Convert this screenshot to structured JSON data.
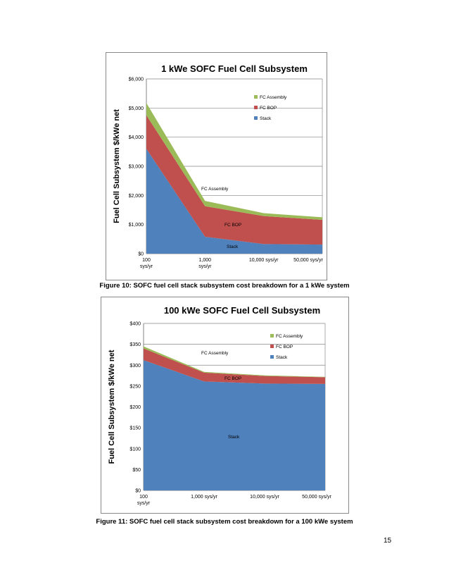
{
  "colors": {
    "stack": "#4f81bd",
    "fc_bop": "#c0504d",
    "fc_assembly": "#9bbb59"
  },
  "chart_data": [
    {
      "type": "area",
      "stacked": true,
      "title": "1 kWe SOFC Fuel Cell Subsystem",
      "ylabel": "Fuel Cell Subsystem $/kWe net",
      "xlabel": "",
      "categories": [
        [
          "100",
          "sys/yr"
        ],
        [
          "1,000",
          "sys/yr"
        ],
        [
          "10,000 sys/yr"
        ],
        [
          "50,000 sys/yr"
        ]
      ],
      "ylim": [
        0,
        6000
      ],
      "yticks": [
        "$0",
        "$1,000",
        "$2,000",
        "$3,000",
        "$4,000",
        "$5,000",
        "$6,000"
      ],
      "series": [
        {
          "name": "Stack",
          "values": [
            3600,
            580,
            330,
            310
          ]
        },
        {
          "name": "FC BOP",
          "values": [
            1150,
            1050,
            960,
            850
          ]
        },
        {
          "name": "FC Assembly",
          "values": [
            420,
            180,
            100,
            90
          ]
        }
      ],
      "legend_position": "right",
      "annotations": [
        "FC Assembly",
        "FC BOP",
        "Stack"
      ],
      "caption": "Figure 10: SOFC fuel cell stack subsystem cost breakdown for a 1 kWe system"
    },
    {
      "type": "area",
      "stacked": true,
      "title": "100 kWe SOFC Fuel Cell Subsystem",
      "ylabel": "Fuel Cell Subsystem $/kWe net",
      "xlabel": "",
      "categories": [
        [
          "100",
          "sys/yr"
        ],
        [
          "1,000 sys/yr"
        ],
        [
          "10,000 sys/yr"
        ],
        [
          "50,000 sys/yr"
        ]
      ],
      "ylim": [
        0,
        400
      ],
      "yticks": [
        "$0",
        "$50",
        "$100",
        "$150",
        "$200",
        "$250",
        "$300",
        "$350",
        "$400"
      ],
      "series": [
        {
          "name": "Stack",
          "values": [
            312,
            261,
            256,
            255
          ]
        },
        {
          "name": "FC BOP",
          "values": [
            28,
            21,
            18,
            16
          ]
        },
        {
          "name": "FC Assembly",
          "values": [
            5,
            2,
            1.5,
            1
          ]
        }
      ],
      "legend_position": "right",
      "annotations": [
        "FC Assembly",
        "FC BOP",
        "Stack"
      ],
      "caption": "Figure 11: SOFC fuel cell stack subsystem cost breakdown for a 100 kWe system"
    }
  ],
  "page_number": "15"
}
